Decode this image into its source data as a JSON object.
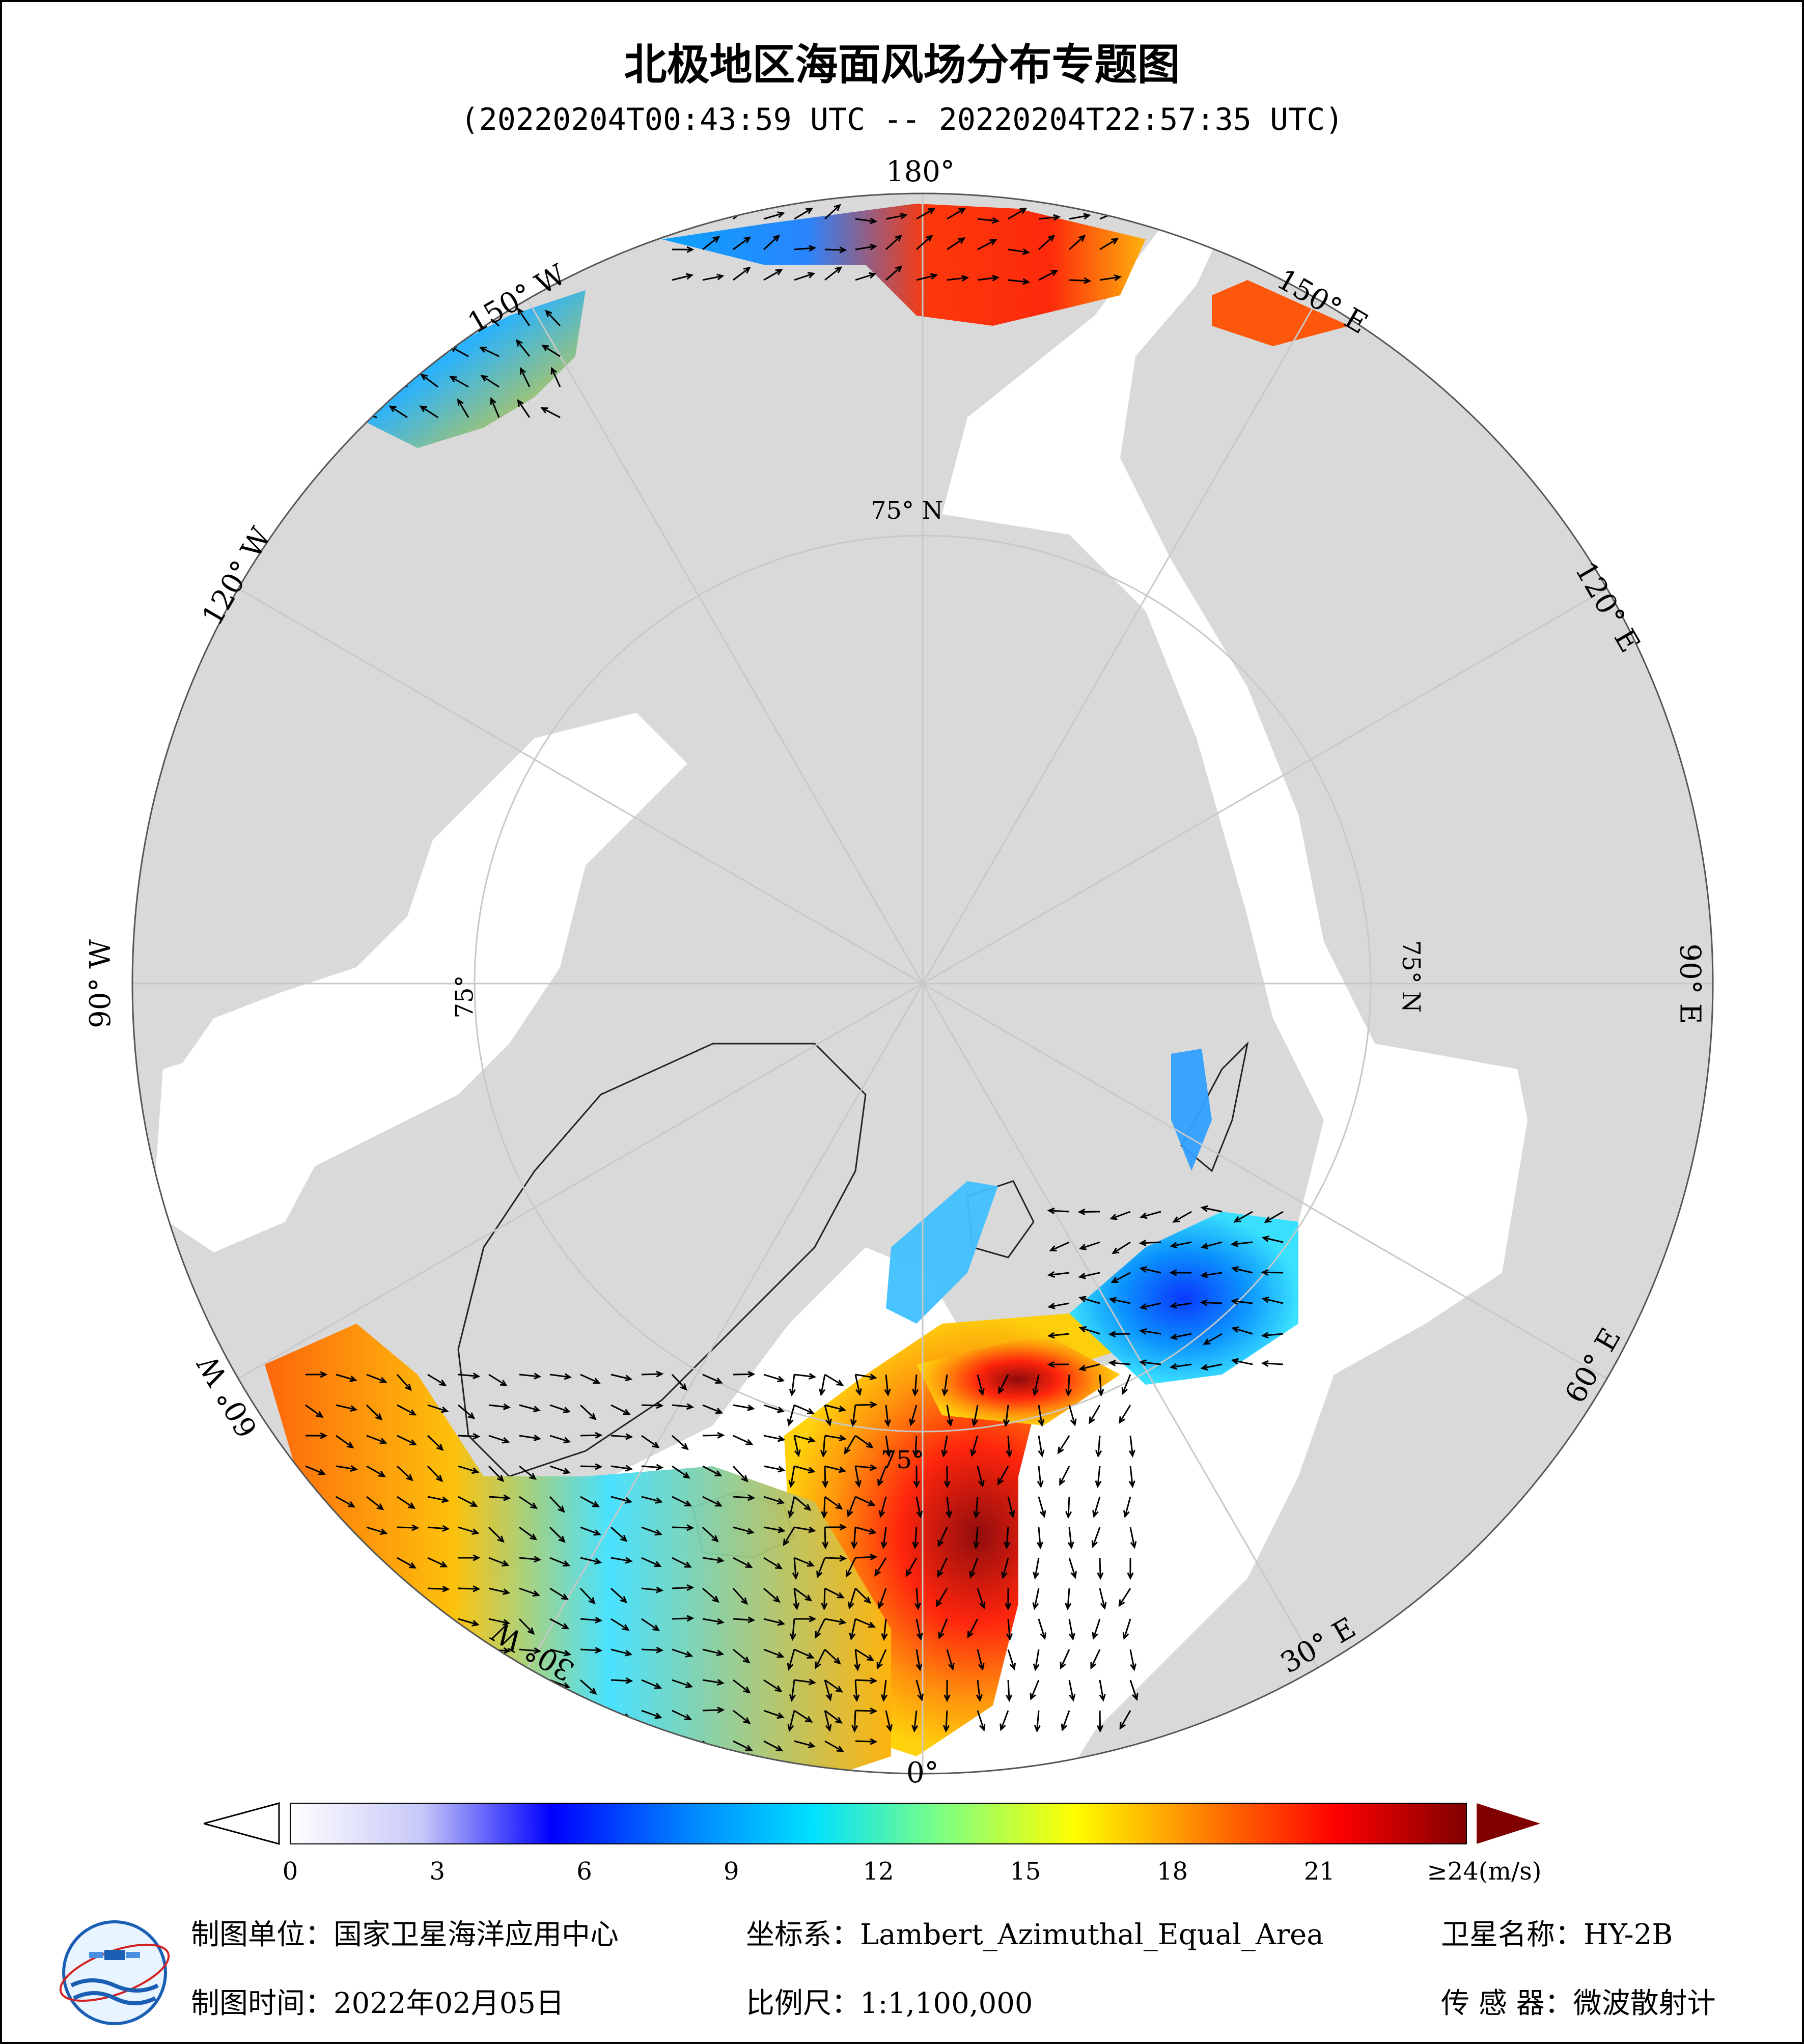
{
  "title": "北极地区海面风场分布专题图",
  "time_range": "(20220204T00:43:59 UTC -- 20220204T22:57:35 UTC)",
  "map": {
    "lon_labels": [
      "180°",
      "150° E",
      "120° E",
      "90° E",
      "60° E",
      "30° E",
      "0°",
      "30° W",
      "60° W",
      "90° W",
      "120° W",
      "150° W"
    ],
    "lat_labels": [
      "75° N",
      "75° N",
      "75°",
      "75°"
    ],
    "colors": {
      "land": "#d9d9d9",
      "ocean": "#ffffff",
      "grid": "#c8c8c8"
    }
  },
  "colorbar": {
    "ticks": [
      "0",
      "3",
      "6",
      "9",
      "12",
      "15",
      "18",
      "21",
      "≥24(m/s)"
    ],
    "stops": [
      "#ffffff",
      "#c8c8f8",
      "#0000ff",
      "#0080ff",
      "#00e0ff",
      "#80ff80",
      "#ffff00",
      "#ff8000",
      "#ff0000",
      "#800000"
    ]
  },
  "footer": {
    "unit_label": "制图单位：国家卫星海洋应用中心",
    "coord_label": "坐标系：Lambert_Azimuthal_Equal_Area",
    "satellite_label": "卫星名称：HY-2B",
    "date_label": "制图时间：2022年02月05日",
    "scale_label": "比例尺：1:1,100,000",
    "sensor_label": "传  感  器：微波散射计"
  }
}
